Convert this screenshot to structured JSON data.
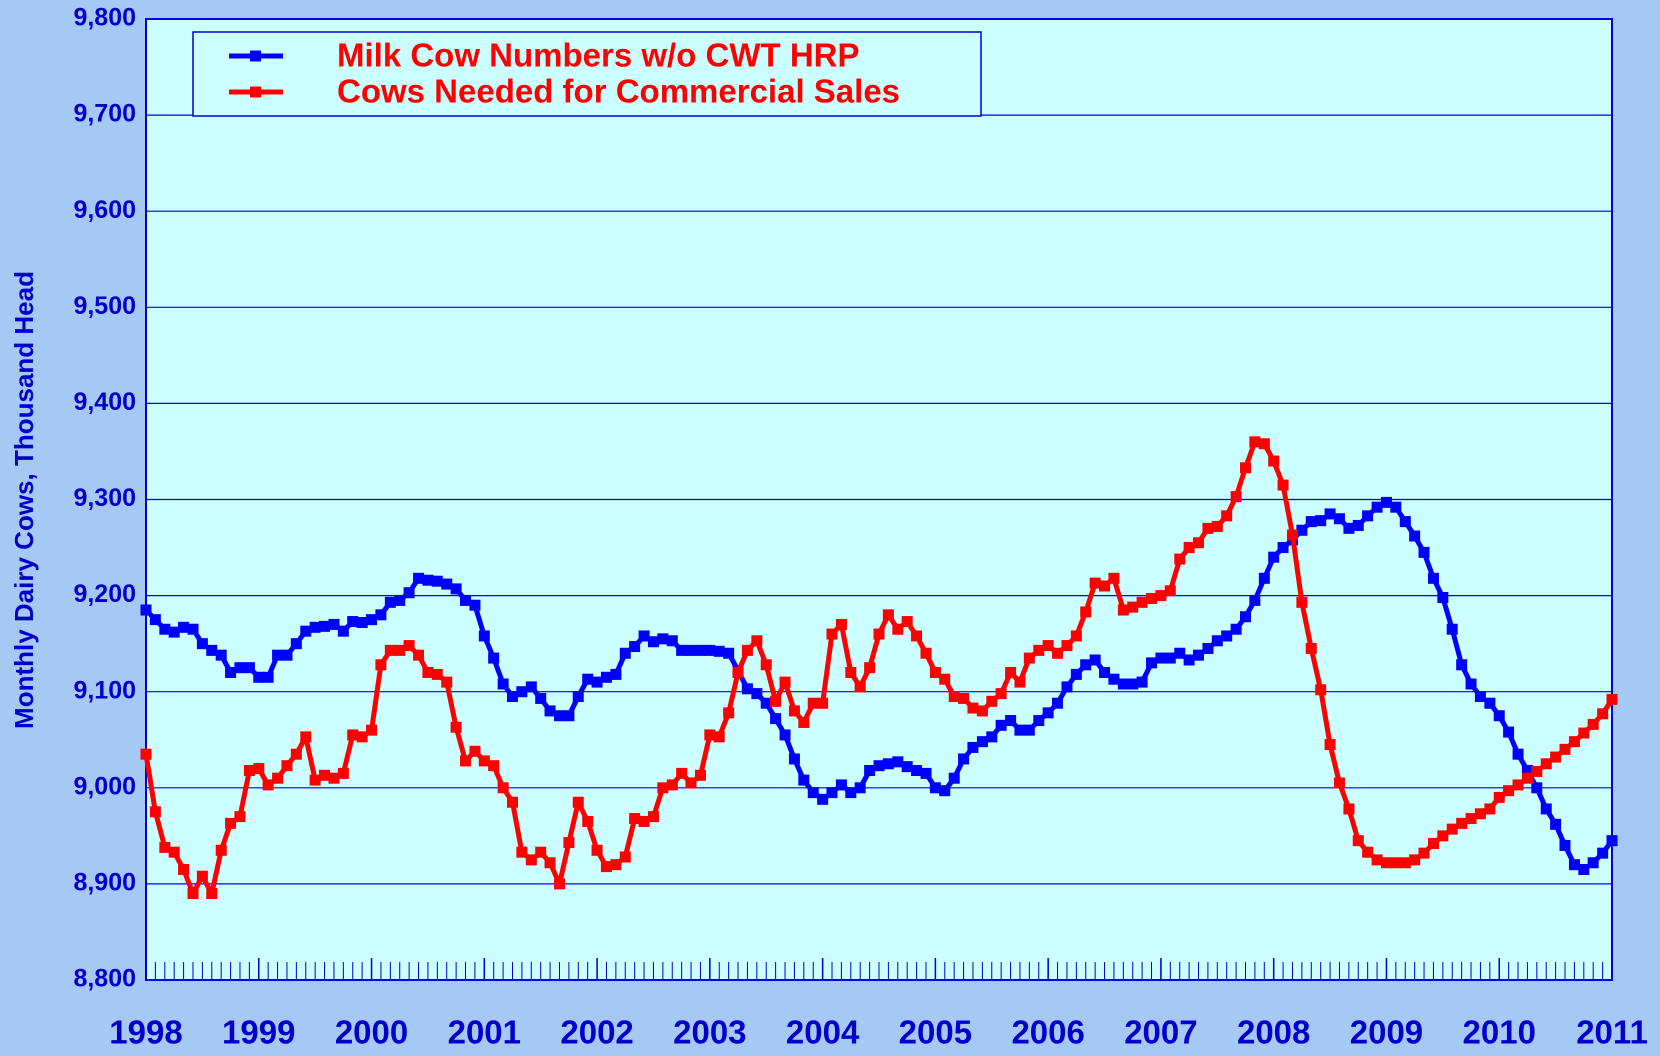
{
  "chart_data": {
    "type": "line",
    "y_label": "Monthly Dairy Cows, Thousand Head",
    "xlim": [
      1998,
      2011
    ],
    "xticks": [
      1998,
      1999,
      2000,
      2001,
      2002,
      2003,
      2004,
      2005,
      2006,
      2007,
      2008,
      2009,
      2010,
      2011
    ],
    "ylim": [
      8800,
      9800
    ],
    "yticks": [
      {
        "value": 8800,
        "label": "8,800"
      },
      {
        "value": 8900,
        "label": "8,900"
      },
      {
        "value": 9000,
        "label": "9,000"
      },
      {
        "value": 9100,
        "label": "9,100"
      },
      {
        "value": 9200,
        "label": "9,200"
      },
      {
        "value": 9300,
        "label": "9,300"
      },
      {
        "value": 9400,
        "label": "9,400"
      },
      {
        "value": 9500,
        "label": "9,500"
      },
      {
        "value": 9600,
        "label": "9,600"
      },
      {
        "value": 9700,
        "label": "9,700"
      },
      {
        "value": 9800,
        "label": "9,800"
      }
    ],
    "grid": true,
    "legend": "top-left",
    "x": [
      1998,
      1998.083,
      1998.167,
      1998.25,
      1998.333,
      1998.417,
      1998.5,
      1998.583,
      1998.667,
      1998.75,
      1998.833,
      1998.917,
      1999,
      1999.083,
      1999.167,
      1999.25,
      1999.333,
      1999.417,
      1999.5,
      1999.583,
      1999.667,
      1999.75,
      1999.833,
      1999.917,
      2000,
      2000.083,
      2000.167,
      2000.25,
      2000.333,
      2000.417,
      2000.5,
      2000.583,
      2000.667,
      2000.75,
      2000.833,
      2000.917,
      2001,
      2001.083,
      2001.167,
      2001.25,
      2001.333,
      2001.417,
      2001.5,
      2001.583,
      2001.667,
      2001.75,
      2001.833,
      2001.917,
      2002,
      2002.083,
      2002.167,
      2002.25,
      2002.333,
      2002.417,
      2002.5,
      2002.583,
      2002.667,
      2002.75,
      2002.833,
      2002.917,
      2003,
      2003.083,
      2003.167,
      2003.25,
      2003.333,
      2003.417,
      2003.5,
      2003.583,
      2003.667,
      2003.75,
      2003.833,
      2003.917,
      2004,
      2004.083,
      2004.167,
      2004.25,
      2004.333,
      2004.417,
      2004.5,
      2004.583,
      2004.667,
      2004.75,
      2004.833,
      2004.917,
      2005,
      2005.083,
      2005.167,
      2005.25,
      2005.333,
      2005.417,
      2005.5,
      2005.583,
      2005.667,
      2005.75,
      2005.833,
      2005.917,
      2006,
      2006.083,
      2006.167,
      2006.25,
      2006.333,
      2006.417,
      2006.5,
      2006.583,
      2006.667,
      2006.75,
      2006.833,
      2006.917,
      2007,
      2007.083,
      2007.167,
      2007.25,
      2007.333,
      2007.417,
      2007.5,
      2007.583,
      2007.667,
      2007.75,
      2007.833,
      2007.917,
      2008,
      2008.083,
      2008.167,
      2008.25,
      2008.333,
      2008.417,
      2008.5,
      2008.583,
      2008.667,
      2008.75,
      2008.833,
      2008.917,
      2009,
      2009.083,
      2009.167,
      2009.25,
      2009.333,
      2009.417,
      2009.5,
      2009.583,
      2009.667,
      2009.75,
      2009.833,
      2009.917,
      2010,
      2010.083,
      2010.167,
      2010.25,
      2010.333,
      2010.417,
      2010.5,
      2010.583,
      2010.667,
      2010.75,
      2010.833,
      2010.917,
      2011
    ],
    "series": [
      {
        "name": "Milk Cow Numbers w/o CWT HRP",
        "color": "#0000ff",
        "values": [
          9185,
          9175,
          9165,
          9162,
          9167,
          9165,
          9150,
          9143,
          9138,
          9120,
          9125,
          9125,
          9115,
          9115,
          9138,
          9138,
          9150,
          9163,
          9167,
          9168,
          9170,
          9163,
          9173,
          9172,
          9175,
          9180,
          9193,
          9195,
          9203,
          9218,
          9216,
          9215,
          9212,
          9207,
          9195,
          9190,
          9158,
          9135,
          9108,
          9095,
          9100,
          9105,
          9093,
          9080,
          9075,
          9075,
          9095,
          9113,
          9110,
          9115,
          9118,
          9140,
          9147,
          9158,
          9152,
          9155,
          9153,
          9143,
          9143,
          9143,
          9143,
          9142,
          9140,
          9122,
          9103,
          9098,
          9088,
          9072,
          9055,
          9030,
          9008,
          8995,
          8988,
          8995,
          9003,
          8995,
          9000,
          9018,
          9023,
          9025,
          9027,
          9022,
          9018,
          9015,
          9000,
          8997,
          9010,
          9030,
          9042,
          9048,
          9053,
          9065,
          9070,
          9060,
          9060,
          9070,
          9078,
          9088,
          9105,
          9118,
          9128,
          9133,
          9120,
          9113,
          9108,
          9108,
          9110,
          9130,
          9135,
          9135,
          9140,
          9133,
          9138,
          9145,
          9153,
          9158,
          9165,
          9178,
          9195,
          9218,
          9240,
          9250,
          9258,
          9268,
          9277,
          9278,
          9285,
          9280,
          9270,
          9273,
          9283,
          9292,
          9297,
          9292,
          9277,
          9262,
          9245,
          9218,
          9198,
          9165,
          9128,
          9108,
          9095,
          9088,
          9075,
          9058,
          9035,
          9018,
          9000,
          8978,
          8962,
          8940,
          8920,
          8915,
          8922,
          8932,
          8945
        ]
      },
      {
        "name": "Cows Needed for Commercial Sales",
        "color": "#ff0000",
        "values": [
          9035,
          8975,
          8938,
          8933,
          8915,
          8890,
          8908,
          8890,
          8935,
          8963,
          8970,
          9018,
          9020,
          9003,
          9010,
          9023,
          9035,
          9053,
          9008,
          9013,
          9010,
          9015,
          9055,
          9053,
          9060,
          9128,
          9143,
          9143,
          9148,
          9138,
          9120,
          9118,
          9110,
          9063,
          9028,
          9038,
          9028,
          9023,
          9000,
          8985,
          8933,
          8925,
          8933,
          8922,
          8900,
          8943,
          8985,
          8965,
          8935,
          8918,
          8920,
          8928,
          8968,
          8965,
          8970,
          9000,
          9003,
          9015,
          9005,
          9013,
          9055,
          9053,
          9078,
          9120,
          9143,
          9153,
          9128,
          9090,
          9110,
          9080,
          9068,
          9088,
          9088,
          9160,
          9170,
          9120,
          9105,
          9125,
          9160,
          9180,
          9165,
          9173,
          9158,
          9140,
          9120,
          9113,
          9095,
          9093,
          9083,
          9080,
          9090,
          9098,
          9120,
          9110,
          9135,
          9143,
          9148,
          9140,
          9148,
          9158,
          9183,
          9213,
          9210,
          9218,
          9185,
          9188,
          9193,
          9197,
          9200,
          9205,
          9238,
          9250,
          9255,
          9270,
          9272,
          9283,
          9303,
          9333,
          9360,
          9358,
          9340,
          9315,
          9263,
          9193,
          9145,
          9102,
          9045,
          9005,
          8978,
          8945,
          8933,
          8925,
          8922,
          8922,
          8922,
          8925,
          8932,
          8942,
          8950,
          8957,
          8963,
          8968,
          8973,
          8978,
          8990,
          8997,
          9003,
          9010,
          9017,
          9025,
          9032,
          9040,
          9048,
          9057,
          9066,
          9077,
          9092
        ]
      }
    ]
  }
}
